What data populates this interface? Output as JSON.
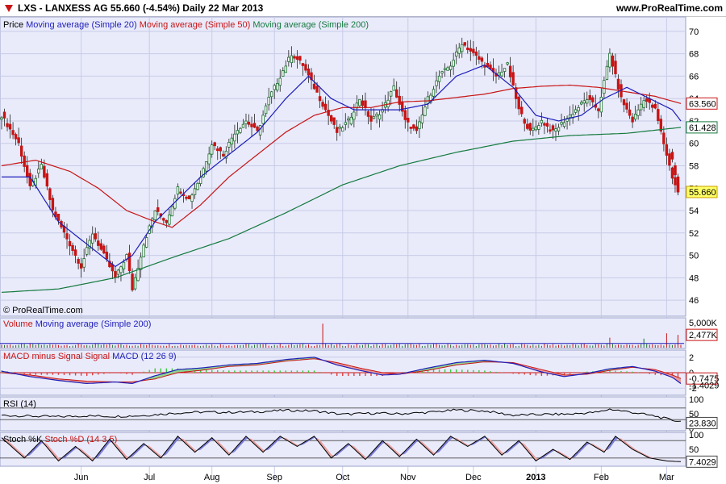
{
  "header": {
    "title": "LXS - LANXESS AG    55.660 (-4.54%)    Daily  22 Mar 2013",
    "site": "www.ProRealTime.com",
    "copyright": "© ProRealTime.com"
  },
  "colors": {
    "bg": "#e9ebfb",
    "grid": "#c7cbe6",
    "ma20": "#1d1db9",
    "ma50": "#c81414",
    "ma200": "#157a3e",
    "candle_up": "#1b6e2c",
    "candle_down": "#c81414",
    "macd_pos": "#3cc83c",
    "macd_neg": "#e04040"
  },
  "legends": {
    "price": {
      "prefix": "Price",
      "ma20": "Moving average (Simple 20)",
      "ma50": "Moving average (Simple 50)",
      "ma200": "Moving average (Simple 200)"
    },
    "volume": {
      "prefix": "Volume",
      "ma": "Moving average (Simple 200)"
    },
    "macd": {
      "prefix": "MACD minus Signal Signal",
      "main": "MACD (12 26 9)"
    },
    "rsi": {
      "main": "RSI (14)"
    },
    "stoch": {
      "k": "Stoch %K",
      "d": "Stoch %D (14 3 5)"
    }
  },
  "chart_data": [
    {
      "type": "candlestick",
      "title": "LXS - LANXESS AG",
      "x_tick_labels": [
        "Jun",
        "Jul",
        "Aug",
        "Sep",
        "Oct",
        "Nov",
        "Dec",
        "2013",
        "Feb",
        "Mar"
      ],
      "y_tick_labels": [
        "46",
        "48",
        "50",
        "52",
        "54",
        "56",
        "58",
        "60",
        "62",
        "64",
        "66",
        "68",
        "70"
      ],
      "ylim": [
        45,
        71
      ],
      "last_price": "55.660",
      "ma200_value": "61.428",
      "ma50_value": "63.560",
      "close_path": [
        [
          0,
          62.5
        ],
        [
          6,
          60
        ],
        [
          10,
          56
        ],
        [
          14,
          58
        ],
        [
          18,
          54
        ],
        [
          24,
          51
        ],
        [
          28,
          49
        ],
        [
          32,
          52
        ],
        [
          36,
          50
        ],
        [
          40,
          48
        ],
        [
          44,
          50
        ],
        [
          46,
          47
        ],
        [
          50,
          51
        ],
        [
          54,
          54
        ],
        [
          58,
          53
        ],
        [
          62,
          56
        ],
        [
          66,
          55
        ],
        [
          70,
          57
        ],
        [
          74,
          60
        ],
        [
          78,
          59
        ],
        [
          82,
          61
        ],
        [
          86,
          62
        ],
        [
          90,
          61
        ],
        [
          94,
          64
        ],
        [
          98,
          66
        ],
        [
          102,
          68
        ],
        [
          106,
          67
        ],
        [
          110,
          65
        ],
        [
          114,
          63
        ],
        [
          118,
          61
        ],
        [
          122,
          62
        ],
        [
          126,
          64
        ],
        [
          130,
          62
        ],
        [
          134,
          63
        ],
        [
          138,
          65
        ],
        [
          142,
          62
        ],
        [
          146,
          61
        ],
        [
          150,
          64
        ],
        [
          154,
          66
        ],
        [
          158,
          67
        ],
        [
          162,
          69
        ],
        [
          166,
          68
        ],
        [
          170,
          67
        ],
        [
          174,
          66
        ],
        [
          178,
          67
        ],
        [
          182,
          63
        ],
        [
          186,
          61
        ],
        [
          190,
          62
        ],
        [
          194,
          61
        ],
        [
          198,
          62
        ],
        [
          202,
          63
        ],
        [
          206,
          64
        ],
        [
          210,
          63
        ],
        [
          214,
          68
        ],
        [
          218,
          64
        ],
        [
          222,
          62
        ],
        [
          226,
          64
        ],
        [
          230,
          63
        ],
        [
          234,
          59
        ],
        [
          236,
          57
        ],
        [
          238,
          55.66
        ]
      ],
      "ma20_path": [
        [
          0,
          57
        ],
        [
          10,
          57
        ],
        [
          20,
          53
        ],
        [
          30,
          51
        ],
        [
          40,
          49
        ],
        [
          46,
          50
        ],
        [
          54,
          53
        ],
        [
          62,
          55
        ],
        [
          70,
          57
        ],
        [
          80,
          59
        ],
        [
          90,
          61
        ],
        [
          100,
          64
        ],
        [
          108,
          66
        ],
        [
          116,
          64
        ],
        [
          124,
          63
        ],
        [
          132,
          63
        ],
        [
          140,
          63
        ],
        [
          150,
          63.5
        ],
        [
          160,
          66
        ],
        [
          170,
          67
        ],
        [
          180,
          65
        ],
        [
          188,
          62.5
        ],
        [
          196,
          62
        ],
        [
          204,
          62.5
        ],
        [
          212,
          64
        ],
        [
          220,
          65
        ],
        [
          228,
          64
        ],
        [
          236,
          63
        ],
        [
          239,
          62
        ]
      ],
      "ma50_path": [
        [
          0,
          58
        ],
        [
          12,
          58.5
        ],
        [
          24,
          57.5
        ],
        [
          34,
          56
        ],
        [
          44,
          54
        ],
        [
          54,
          53
        ],
        [
          60,
          52.5
        ],
        [
          70,
          54.5
        ],
        [
          80,
          57
        ],
        [
          90,
          59
        ],
        [
          100,
          61
        ],
        [
          110,
          62.5
        ],
        [
          120,
          63.2
        ],
        [
          130,
          63.2
        ],
        [
          140,
          63.7
        ],
        [
          150,
          63.8
        ],
        [
          160,
          64.1
        ],
        [
          170,
          64.4
        ],
        [
          180,
          64.9
        ],
        [
          190,
          65.1
        ],
        [
          200,
          65.2
        ],
        [
          210,
          65.0
        ],
        [
          220,
          64.6
        ],
        [
          230,
          64.2
        ],
        [
          239,
          63.56
        ]
      ],
      "ma200_path": [
        [
          0,
          46.7
        ],
        [
          20,
          47.0
        ],
        [
          40,
          48.0
        ],
        [
          60,
          49.8
        ],
        [
          80,
          51.5
        ],
        [
          100,
          53.8
        ],
        [
          120,
          56.3
        ],
        [
          140,
          58.0
        ],
        [
          160,
          59.2
        ],
        [
          180,
          60.2
        ],
        [
          200,
          60.7
        ],
        [
          220,
          60.9
        ],
        [
          239,
          61.428
        ]
      ]
    },
    {
      "type": "bar",
      "title": "Volume",
      "y_tick_labels": [
        "5,000K"
      ],
      "ylim": [
        0,
        5000
      ],
      "last_value": "2,477K",
      "spike_values": [
        [
          113,
          4800
        ],
        [
          214,
          1900
        ],
        [
          226,
          1700
        ],
        [
          234,
          2800
        ],
        [
          238,
          2477
        ]
      ],
      "base_value": 550
    },
    {
      "type": "line",
      "title": "MACD (12 26 9)",
      "y_tick_labels": [
        "2",
        "0",
        "-2"
      ],
      "ylim": [
        -2.5,
        2.5
      ],
      "last_value": "-0.7475",
      "second_value": "-1.4029",
      "macd_path": [
        [
          0,
          0.2
        ],
        [
          10,
          -0.5
        ],
        [
          20,
          -1.0
        ],
        [
          30,
          -1.4
        ],
        [
          40,
          -1.2
        ],
        [
          46,
          -1.4
        ],
        [
          54,
          -0.4
        ],
        [
          62,
          0.4
        ],
        [
          70,
          0.6
        ],
        [
          80,
          1.0
        ],
        [
          90,
          1.2
        ],
        [
          100,
          1.7
        ],
        [
          110,
          2.0
        ],
        [
          118,
          1.0
        ],
        [
          126,
          0.3
        ],
        [
          134,
          -0.3
        ],
        [
          140,
          -0.2
        ],
        [
          150,
          0.6
        ],
        [
          160,
          1.3
        ],
        [
          170,
          1.6
        ],
        [
          180,
          1.2
        ],
        [
          190,
          0.1
        ],
        [
          198,
          -0.5
        ],
        [
          206,
          -0.1
        ],
        [
          214,
          0.5
        ],
        [
          222,
          0.8
        ],
        [
          230,
          0.2
        ],
        [
          236,
          -0.6
        ],
        [
          239,
          -1.4029
        ]
      ],
      "signal_path": [
        [
          0,
          0.0
        ],
        [
          10,
          -0.3
        ],
        [
          20,
          -0.8
        ],
        [
          30,
          -1.1
        ],
        [
          40,
          -1.2
        ],
        [
          46,
          -1.2
        ],
        [
          54,
          -0.8
        ],
        [
          62,
          0.0
        ],
        [
          70,
          0.3
        ],
        [
          80,
          0.8
        ],
        [
          90,
          1.0
        ],
        [
          100,
          1.5
        ],
        [
          110,
          1.8
        ],
        [
          118,
          1.3
        ],
        [
          126,
          0.6
        ],
        [
          134,
          0.0
        ],
        [
          140,
          -0.2
        ],
        [
          150,
          0.3
        ],
        [
          160,
          1.0
        ],
        [
          170,
          1.4
        ],
        [
          180,
          1.3
        ],
        [
          190,
          0.4
        ],
        [
          198,
          -0.3
        ],
        [
          206,
          -0.2
        ],
        [
          214,
          0.3
        ],
        [
          222,
          0.7
        ],
        [
          230,
          0.4
        ],
        [
          236,
          -0.3
        ],
        [
          239,
          -0.7475
        ]
      ]
    },
    {
      "type": "line",
      "title": "RSI (14)",
      "y_tick_labels": [
        "100",
        "50",
        "0"
      ],
      "ylim": [
        0,
        100
      ],
      "last_value": "23.830",
      "rsi_path": [
        [
          0,
          45
        ],
        [
          10,
          42
        ],
        [
          20,
          40
        ],
        [
          30,
          43
        ],
        [
          40,
          41
        ],
        [
          50,
          44
        ],
        [
          60,
          52
        ],
        [
          70,
          56
        ],
        [
          80,
          55
        ],
        [
          90,
          57
        ],
        [
          100,
          62
        ],
        [
          110,
          60
        ],
        [
          120,
          48
        ],
        [
          130,
          52
        ],
        [
          140,
          50
        ],
        [
          150,
          55
        ],
        [
          160,
          63
        ],
        [
          170,
          60
        ],
        [
          180,
          45
        ],
        [
          190,
          48
        ],
        [
          200,
          49
        ],
        [
          210,
          56
        ],
        [
          214,
          66
        ],
        [
          220,
          58
        ],
        [
          230,
          42
        ],
        [
          236,
          28
        ],
        [
          239,
          23.83
        ]
      ]
    },
    {
      "type": "line",
      "title": "Stoch %K Stoch %D (14 3 5)",
      "y_tick_labels": [
        "100",
        "50",
        "0"
      ],
      "ylim": [
        0,
        100
      ],
      "last_value": "7.4029",
      "stoch_path": [
        [
          0,
          90
        ],
        [
          8,
          20
        ],
        [
          14,
          80
        ],
        [
          20,
          10
        ],
        [
          26,
          60
        ],
        [
          32,
          10
        ],
        [
          38,
          85
        ],
        [
          44,
          15
        ],
        [
          50,
          70
        ],
        [
          56,
          20
        ],
        [
          62,
          95
        ],
        [
          68,
          40
        ],
        [
          74,
          90
        ],
        [
          80,
          30
        ],
        [
          86,
          95
        ],
        [
          92,
          40
        ],
        [
          98,
          95
        ],
        [
          104,
          60
        ],
        [
          110,
          95
        ],
        [
          116,
          20
        ],
        [
          122,
          70
        ],
        [
          128,
          15
        ],
        [
          134,
          80
        ],
        [
          140,
          25
        ],
        [
          146,
          85
        ],
        [
          152,
          30
        ],
        [
          158,
          95
        ],
        [
          164,
          60
        ],
        [
          170,
          95
        ],
        [
          176,
          30
        ],
        [
          182,
          80
        ],
        [
          188,
          10
        ],
        [
          194,
          50
        ],
        [
          200,
          15
        ],
        [
          206,
          75
        ],
        [
          212,
          40
        ],
        [
          216,
          95
        ],
        [
          222,
          50
        ],
        [
          228,
          20
        ],
        [
          234,
          10
        ],
        [
          239,
          7.4
        ]
      ]
    }
  ]
}
